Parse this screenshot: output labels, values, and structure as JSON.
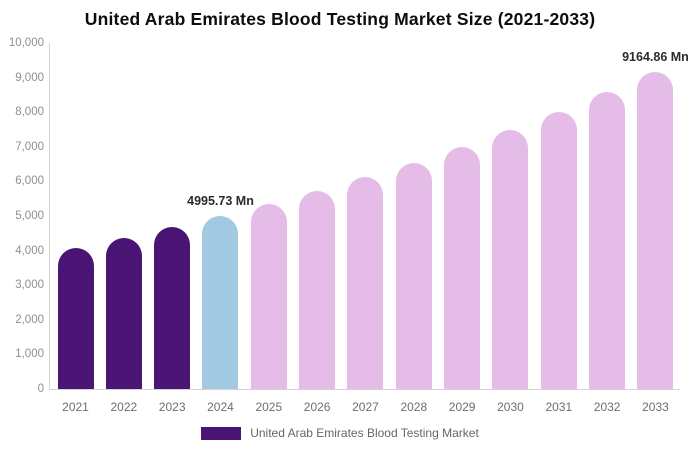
{
  "title": "United Arab Emirates Blood Testing Market Size (2021-2033)",
  "legend": {
    "label": "United Arab Emirates Blood Testing Market",
    "swatch_color": "#4A1475"
  },
  "colors": {
    "historical_bar": "#4A1475",
    "base_year_bar": "#A1C9E1",
    "forecast_bar": "#E5BCE8",
    "axis_line": "#d4d4d4",
    "tick_label": "#8f8f8f",
    "data_label": "#2b2b2b",
    "title_text": "#0d0d0d"
  },
  "y_axis": {
    "min": 0,
    "max": 10000,
    "step": 1000,
    "tick_labels": [
      "0",
      "1,000",
      "2,000",
      "3,000",
      "4,000",
      "5,000",
      "6,000",
      "7,000",
      "8,000",
      "9,000",
      "10,000"
    ]
  },
  "chart_data": {
    "type": "bar",
    "title": "United Arab Emirates Blood Testing Market Size (2021-2033)",
    "unit": "Mn",
    "categories": [
      "2021",
      "2022",
      "2023",
      "2024",
      "2025",
      "2026",
      "2027",
      "2028",
      "2029",
      "2030",
      "2031",
      "2032",
      "2033"
    ],
    "values": [
      4080,
      4365,
      4670,
      4995.73,
      5344,
      5717,
      6116,
      6543,
      7000,
      7489,
      8011,
      8570,
      9164.86
    ],
    "bar_roles": [
      "historical",
      "historical",
      "historical",
      "base_year",
      "forecast",
      "forecast",
      "forecast",
      "forecast",
      "forecast",
      "forecast",
      "forecast",
      "forecast",
      "forecast"
    ],
    "annotations": [
      {
        "category": "2024",
        "text": "4995.73 Mn"
      },
      {
        "category": "2033",
        "text": "9164.86 Mn"
      }
    ],
    "xlabel": "",
    "ylabel": "",
    "ylim": [
      0,
      10000
    ],
    "grid": false,
    "legend_position": "bottom",
    "legend_entries": [
      "United Arab Emirates Blood Testing Market"
    ]
  }
}
